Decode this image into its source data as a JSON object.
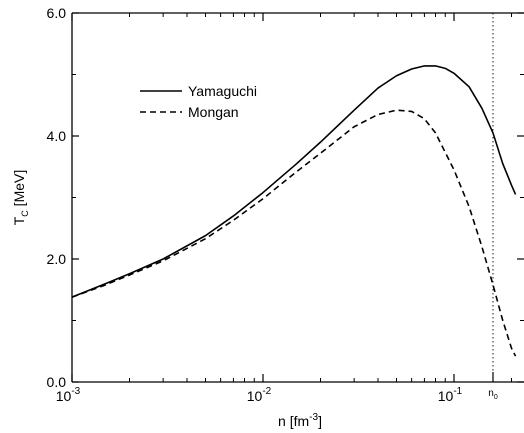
{
  "chart_data": {
    "type": "line",
    "xscale": "log",
    "xlim": [
      0.001,
      0.21
    ],
    "ylim": [
      0.0,
      6.0
    ],
    "xlabel": {
      "base": "n [fm",
      "sup": "-3",
      "tail": "]"
    },
    "ylabel": {
      "base": "T",
      "sub": "C",
      "tail": " [MeV]"
    },
    "yticks": [
      {
        "value": 0.0,
        "label": "0.0"
      },
      {
        "value": 2.0,
        "label": "2.0"
      },
      {
        "value": 4.0,
        "label": "4.0"
      },
      {
        "value": 6.0,
        "label": "6.0"
      }
    ],
    "xticks": [
      {
        "value": 0.001,
        "base": "10",
        "exp": "-3"
      },
      {
        "value": 0.01,
        "base": "10",
        "exp": "-2"
      },
      {
        "value": 0.1,
        "base": "10",
        "exp": "-1"
      }
    ],
    "reference_line": {
      "x": 0.16,
      "label": {
        "base": "n",
        "sub": "0"
      },
      "style": "dotted"
    },
    "legend": {
      "position": "upper-left"
    },
    "series": [
      {
        "name": "Yamaguchi",
        "style": "solid",
        "x": [
          0.001,
          0.0015,
          0.002,
          0.003,
          0.005,
          0.007,
          0.01,
          0.015,
          0.02,
          0.03,
          0.04,
          0.05,
          0.06,
          0.07,
          0.08,
          0.09,
          0.1,
          0.12,
          0.14,
          0.16,
          0.18,
          0.2,
          0.21
        ],
        "y": [
          1.38,
          1.6,
          1.76,
          2.0,
          2.38,
          2.7,
          3.08,
          3.55,
          3.9,
          4.42,
          4.78,
          4.98,
          5.09,
          5.14,
          5.14,
          5.1,
          5.02,
          4.8,
          4.45,
          4.05,
          3.55,
          3.2,
          3.05
        ]
      },
      {
        "name": "Mongan",
        "style": "dashed",
        "x": [
          0.001,
          0.0015,
          0.002,
          0.003,
          0.005,
          0.007,
          0.01,
          0.015,
          0.02,
          0.03,
          0.04,
          0.05,
          0.06,
          0.07,
          0.08,
          0.1,
          0.12,
          0.14,
          0.16,
          0.18,
          0.2,
          0.21
        ],
        "y": [
          1.38,
          1.58,
          1.74,
          1.97,
          2.33,
          2.63,
          2.98,
          3.42,
          3.72,
          4.15,
          4.35,
          4.42,
          4.4,
          4.28,
          4.05,
          3.45,
          2.85,
          2.2,
          1.58,
          1.0,
          0.55,
          0.42
        ]
      }
    ]
  }
}
